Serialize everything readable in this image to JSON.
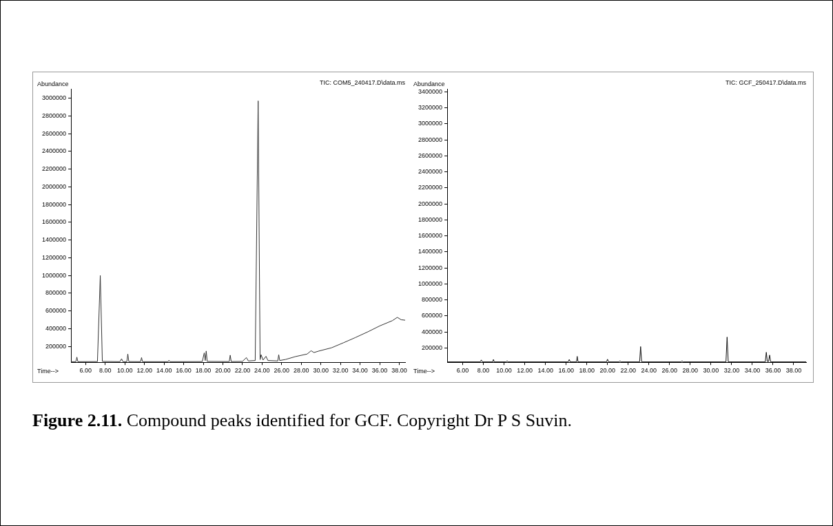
{
  "chart_data": [
    {
      "type": "line",
      "title": "TIC: COM5_240417.D\\data.ms",
      "ylabel": "Abundance",
      "xlabel": "Time-->",
      "color": "#333333",
      "grid": false,
      "legend": false,
      "marker": "none",
      "line_style": "solid",
      "xlim": [
        4.5,
        38.6
      ],
      "xticks": [
        {
          "value": 6,
          "label": "6.00"
        },
        {
          "value": 8,
          "label": "8.00"
        },
        {
          "value": 10,
          "label": "10.00"
        },
        {
          "value": 12,
          "label": "12.00"
        },
        {
          "value": 14,
          "label": "14.00"
        },
        {
          "value": 16,
          "label": "16.00"
        },
        {
          "value": 18,
          "label": "18.00"
        },
        {
          "value": 20,
          "label": "20.00"
        },
        {
          "value": 22,
          "label": "22.00"
        },
        {
          "value": 24,
          "label": "24.00"
        },
        {
          "value": 26,
          "label": "26.00"
        },
        {
          "value": 28,
          "label": "28.00"
        },
        {
          "value": 30,
          "label": "30.00"
        },
        {
          "value": 32,
          "label": "32.00"
        },
        {
          "value": 34,
          "label": "34.00"
        },
        {
          "value": 36,
          "label": "36.00"
        },
        {
          "value": 38,
          "label": "38.00"
        }
      ],
      "ylim": [
        20000,
        3100000
      ],
      "yticks": [
        200000,
        400000,
        600000,
        800000,
        1000000,
        1200000,
        1400000,
        1600000,
        1800000,
        2000000,
        2200000,
        2400000,
        2600000,
        2800000,
        3000000
      ],
      "x": [
        4.5,
        5.0,
        5.1,
        5.2,
        7.2,
        7.49,
        7.7,
        9.5,
        9.66,
        9.8,
        10.2,
        10.3,
        10.4,
        11.6,
        11.7,
        11.8,
        14.4,
        14.5,
        14.6,
        17.9,
        18.1,
        18.2,
        18.3,
        18.4,
        20.65,
        20.75,
        20.85,
        22.0,
        22.4,
        22.6,
        23.3,
        23.6,
        23.8,
        23.9,
        24.1,
        24.4,
        24.6,
        25.6,
        25.7,
        25.8,
        26.4,
        27.4,
        28.6,
        29.0,
        29.3,
        29.8,
        31.1,
        32.3,
        33.5,
        34.8,
        36.0,
        37.3,
        37.8,
        38.2,
        38.6
      ],
      "values": [
        26000,
        27000,
        78000,
        27000,
        28000,
        1000000,
        30000,
        27000,
        60000,
        27000,
        27000,
        113000,
        28000,
        27000,
        73000,
        27000,
        27000,
        42000,
        27000,
        28000,
        126000,
        40000,
        147000,
        30000,
        28000,
        100000,
        28000,
        30000,
        73000,
        35000,
        40000,
        2970000,
        50000,
        105000,
        45000,
        87000,
        40000,
        35000,
        105000,
        40000,
        52000,
        84000,
        113000,
        150000,
        130000,
        147000,
        184000,
        240000,
        298000,
        364000,
        430000,
        490000,
        527000,
        500000,
        495000
      ],
      "annotations": [
        "Figure 2.11. Compound peaks identified for GCF. Copyright Dr P S Suvin."
      ]
    },
    {
      "type": "line",
      "title": "TIC: GCF_250417.D\\data.ms",
      "ylabel": "Abundance",
      "xlabel": "Time-->",
      "color": "#111111",
      "grid": false,
      "legend": false,
      "marker": "none",
      "line_style": "solid",
      "xlim": [
        4.5,
        39.2
      ],
      "xticks": [
        {
          "value": 6,
          "label": "6.00"
        },
        {
          "value": 8,
          "label": "8.00"
        },
        {
          "value": 10,
          "label": "10.00"
        },
        {
          "value": 12,
          "label": "12.00"
        },
        {
          "value": 14,
          "label": "14.00"
        },
        {
          "value": 16,
          "label": "16.00"
        },
        {
          "value": 18,
          "label": "18.00"
        },
        {
          "value": 20,
          "label": "20.00"
        },
        {
          "value": 22,
          "label": "22.00"
        },
        {
          "value": 24,
          "label": "24.00"
        },
        {
          "value": 26,
          "label": "26.00"
        },
        {
          "value": 28,
          "label": "28.00"
        },
        {
          "value": 30,
          "label": "30.00"
        },
        {
          "value": 32,
          "label": "32.00"
        },
        {
          "value": 34,
          "label": "34.00"
        },
        {
          "value": 36,
          "label": "36.00"
        },
        {
          "value": 38,
          "label": "38.00"
        }
      ],
      "ylim": [
        20000,
        3430000
      ],
      "yticks": [
        200000,
        400000,
        600000,
        800000,
        1000000,
        1200000,
        1400000,
        1600000,
        1800000,
        2000000,
        2200000,
        2400000,
        2600000,
        2800000,
        3000000,
        3200000,
        3400000
      ],
      "x": [
        4.5,
        7.7,
        7.8,
        7.9,
        8.9,
        8.97,
        9.05,
        10.2,
        10.3,
        10.4,
        16.2,
        16.3,
        16.4,
        17.0,
        17.07,
        17.15,
        19.9,
        20.0,
        20.1,
        21.1,
        21.2,
        21.3,
        23.1,
        23.2,
        23.3,
        27.1,
        27.2,
        27.3,
        31.45,
        31.56,
        31.67,
        35.25,
        35.35,
        35.45,
        35.57,
        35.67,
        35.77,
        39.2
      ],
      "values": [
        25000,
        25000,
        49000,
        25000,
        25000,
        55000,
        25000,
        25000,
        39000,
        25000,
        25000,
        55000,
        25000,
        25000,
        94000,
        25000,
        25000,
        58000,
        25000,
        25000,
        39000,
        25000,
        25000,
        216000,
        25000,
        25000,
        39000,
        25000,
        25000,
        335000,
        25000,
        25000,
        145000,
        30000,
        30000,
        110000,
        25000,
        25000
      ]
    }
  ]
}
